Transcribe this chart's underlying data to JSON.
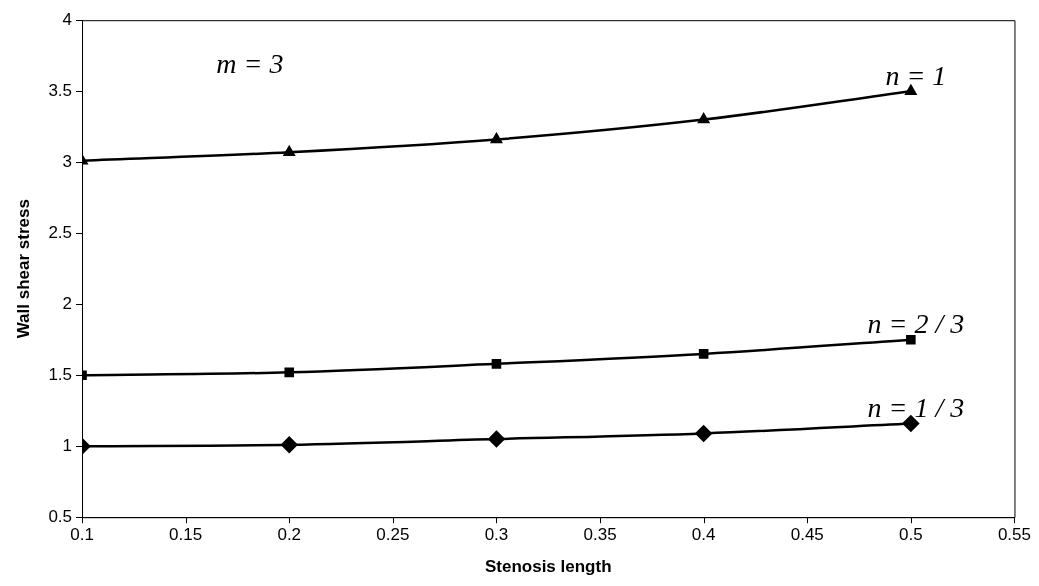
{
  "chart_data": {
    "type": "line",
    "xlabel": "Stenosis length",
    "ylabel": "Wall shear stress",
    "x": [
      0.1,
      0.2,
      0.3,
      0.4,
      0.5
    ],
    "series": [
      {
        "name": "n = 1",
        "color": "#000000",
        "marker": "triangle",
        "values": [
          3.01,
          3.07,
          3.16,
          3.3,
          3.5
        ]
      },
      {
        "name": "n = 2 / 3",
        "color": "#000000",
        "marker": "square",
        "values": [
          1.5,
          1.52,
          1.58,
          1.65,
          1.75
        ]
      },
      {
        "name": "n = 1 / 3",
        "color": "#000000",
        "marker": "diamond",
        "values": [
          1.0,
          1.01,
          1.05,
          1.09,
          1.16
        ]
      }
    ],
    "xlim": [
      0.1,
      0.55
    ],
    "xticks": [
      0.1,
      0.15,
      0.2,
      0.25,
      0.3,
      0.35,
      0.4,
      0.45,
      0.5,
      0.55
    ],
    "ylim": [
      0.5,
      4
    ],
    "yticks": [
      0.5,
      1,
      1.5,
      2,
      2.5,
      3,
      3.5,
      4
    ],
    "annotations": [
      "m = 3"
    ],
    "grid": false,
    "legend": false
  }
}
